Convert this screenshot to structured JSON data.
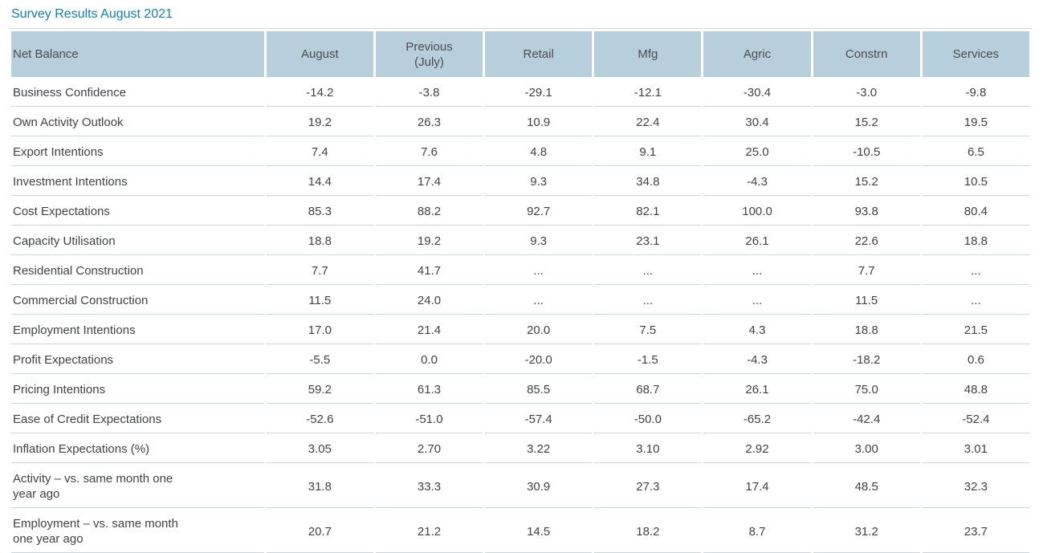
{
  "page": {
    "title": "Survey Results August 2021"
  },
  "colors": {
    "title": "#117db3",
    "header_bg": "#b7cedd",
    "header_text": "#4c4c4f",
    "body_text": "#414244",
    "row_border": "#c8d6e1"
  },
  "chart_data": {
    "type": "table",
    "title": "Survey Results August 2021",
    "columns": [
      "Net Balance",
      "August",
      "Previous\n(July)",
      "Retail",
      "Mfg",
      "Agric",
      "Constrn",
      "Services"
    ],
    "rows": [
      {
        "label": "Business Confidence",
        "values": [
          "-14.2",
          "-3.8",
          "-29.1",
          "-12.1",
          "-30.4",
          "-3.0",
          "-9.8"
        ]
      },
      {
        "label": "Own Activity Outlook",
        "values": [
          "19.2",
          "26.3",
          "10.9",
          "22.4",
          "30.4",
          "15.2",
          "19.5"
        ]
      },
      {
        "label": "Export Intentions",
        "values": [
          "7.4",
          "7.6",
          "4.8",
          "9.1",
          "25.0",
          "-10.5",
          "6.5"
        ]
      },
      {
        "label": "Investment Intentions",
        "values": [
          "14.4",
          "17.4",
          "9.3",
          "34.8",
          "-4.3",
          "15.2",
          "10.5"
        ]
      },
      {
        "label": "Cost Expectations",
        "values": [
          "85.3",
          "88.2",
          "92.7",
          "82.1",
          "100.0",
          "93.8",
          "80.4"
        ]
      },
      {
        "label": "Capacity Utilisation",
        "values": [
          "18.8",
          "19.2",
          "9.3",
          "23.1",
          "26.1",
          "22.6",
          "18.8"
        ]
      },
      {
        "label": "Residential Construction",
        "values": [
          "7.7",
          "41.7",
          "...",
          "...",
          "...",
          "7.7",
          "..."
        ]
      },
      {
        "label": "Commercial Construction",
        "values": [
          "11.5",
          "24.0",
          "...",
          "...",
          "...",
          "11.5",
          "..."
        ]
      },
      {
        "label": "Employment Intentions",
        "values": [
          "17.0",
          "21.4",
          "20.0",
          "7.5",
          "4.3",
          "18.8",
          "21.5"
        ]
      },
      {
        "label": "Profit Expectations",
        "values": [
          "-5.5",
          "0.0",
          "-20.0",
          "-1.5",
          "-4.3",
          "-18.2",
          "0.6"
        ]
      },
      {
        "label": "Pricing Intentions",
        "values": [
          "59.2",
          "61.3",
          "85.5",
          "68.7",
          "26.1",
          "75.0",
          "48.8"
        ]
      },
      {
        "label": "Ease of Credit Expectations",
        "values": [
          "-52.6",
          "-51.0",
          "-57.4",
          "-50.0",
          "-65.2",
          "-42.4",
          "-52.4"
        ]
      },
      {
        "label": "Inflation Expectations (%)",
        "values": [
          "3.05",
          "2.70",
          "3.22",
          "3.10",
          "2.92",
          "3.00",
          "3.01"
        ]
      },
      {
        "label": "Activity – vs. same month one year ago",
        "values": [
          "31.8",
          "33.3",
          "30.9",
          "27.3",
          "17.4",
          "48.5",
          "32.3"
        ]
      },
      {
        "label": "Employment – vs. same month one year ago",
        "values": [
          "20.7",
          "21.2",
          "14.5",
          "18.2",
          "8.7",
          "31.2",
          "23.7"
        ]
      }
    ]
  }
}
